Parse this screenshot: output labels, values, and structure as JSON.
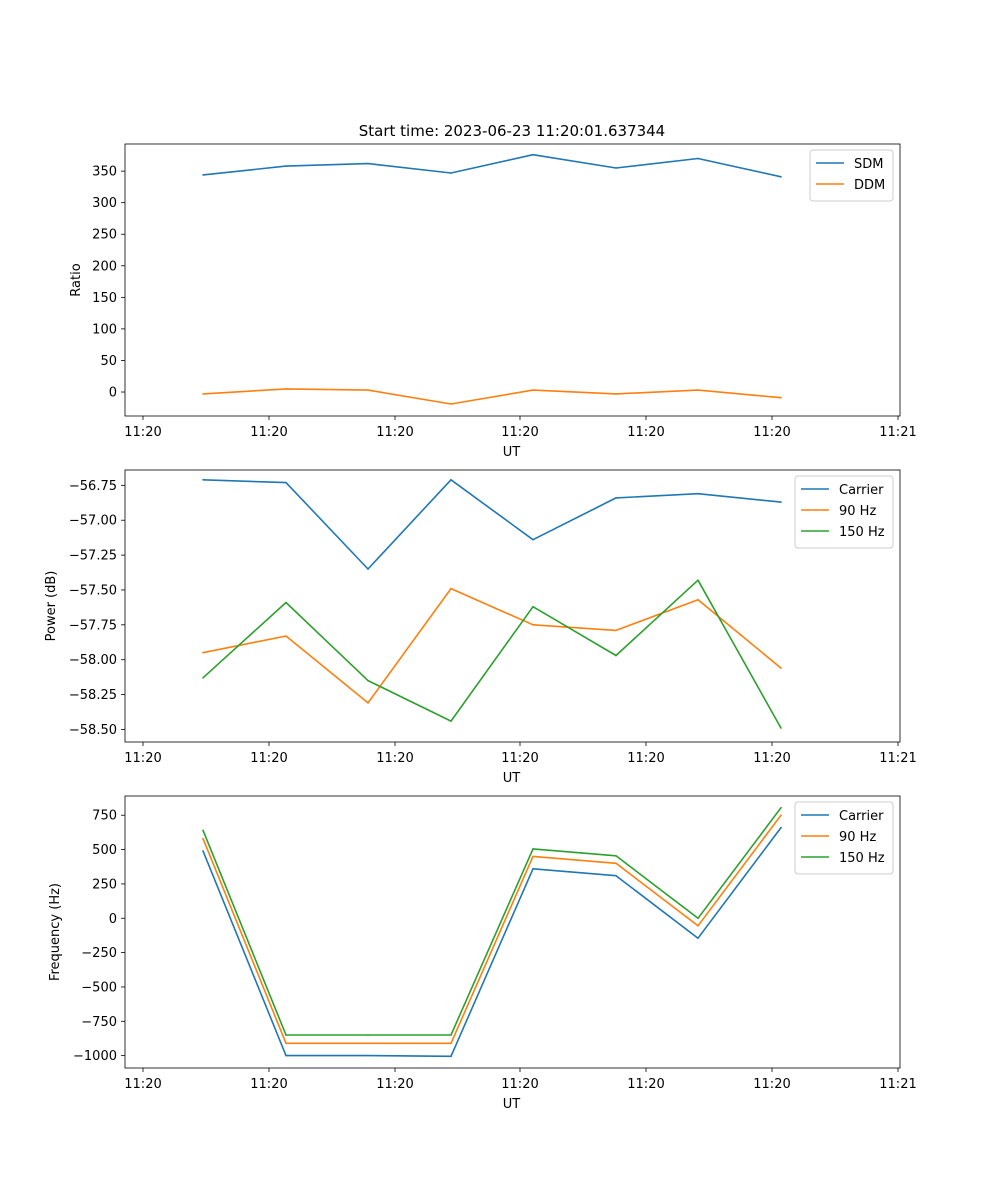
{
  "figure_title": "Start time: 2023-06-23 11:20:01.637344",
  "colors": {
    "blue": "#1f77b4",
    "orange": "#ff7f0e",
    "green": "#2ca02c"
  },
  "chart_data": [
    {
      "type": "line",
      "xlabel": "UT",
      "ylabel": "Ratio",
      "xtick_labels": [
        "11:20",
        "11:20",
        "11:20",
        "11:20",
        "11:20",
        "11:20",
        "11:21"
      ],
      "ylim": [
        -38,
        393
      ],
      "yticks": [
        0,
        50,
        100,
        150,
        200,
        250,
        300,
        350
      ],
      "ytick_labels": [
        "0",
        "50",
        "100",
        "150",
        "200",
        "250",
        "300",
        "350"
      ],
      "legend_position": "top-right",
      "series": [
        {
          "name": "SDM",
          "color": "#1f77b4",
          "values": [
            344,
            358,
            362,
            347,
            376,
            355,
            370,
            341
          ]
        },
        {
          "name": "DDM",
          "color": "#ff7f0e",
          "values": [
            -3,
            5,
            3,
            -19,
            3,
            -3,
            3,
            -9
          ]
        }
      ]
    },
    {
      "type": "line",
      "xlabel": "UT",
      "ylabel": "Power (dB)",
      "xtick_labels": [
        "11:20",
        "11:20",
        "11:20",
        "11:20",
        "11:20",
        "11:20",
        "11:21"
      ],
      "ylim": [
        -58.59,
        -56.64
      ],
      "yticks": [
        -56.75,
        -57.0,
        -57.25,
        -57.5,
        -57.75,
        -58.0,
        -58.25,
        -58.5
      ],
      "ytick_labels": [
        "−56.75",
        "−57.00",
        "−57.25",
        "−57.50",
        "−57.75",
        "−58.00",
        "−58.25",
        "−58.50"
      ],
      "legend_position": "top-right",
      "series": [
        {
          "name": "Carrier",
          "color": "#1f77b4",
          "values": [
            -56.71,
            -56.73,
            -57.35,
            -56.71,
            -57.14,
            -56.84,
            -56.81,
            -56.87
          ]
        },
        {
          "name": "90 Hz",
          "color": "#ff7f0e",
          "values": [
            -57.95,
            -57.83,
            -58.31,
            -57.49,
            -57.75,
            -57.79,
            -57.57,
            -58.06
          ]
        },
        {
          "name": "150 Hz",
          "color": "#2ca02c",
          "values": [
            -58.13,
            -57.59,
            -58.15,
            -58.44,
            -57.62,
            -57.97,
            -57.43,
            -58.49
          ]
        }
      ]
    },
    {
      "type": "line",
      "xlabel": "UT",
      "ylabel": "Frequency (Hz)",
      "xtick_labels": [
        "11:20",
        "11:20",
        "11:20",
        "11:20",
        "11:20",
        "11:20",
        "11:21"
      ],
      "ylim": [
        -1090,
        890
      ],
      "yticks": [
        750,
        500,
        250,
        0,
        -250,
        -500,
        -750,
        -1000
      ],
      "ytick_labels": [
        "750",
        "500",
        "250",
        "0",
        "−250",
        "−500",
        "−750",
        "−1000"
      ],
      "legend_position": "top-right",
      "series": [
        {
          "name": "Carrier",
          "color": "#1f77b4",
          "values": [
            490,
            -1000,
            -1000,
            -1005,
            360,
            310,
            -145,
            660
          ]
        },
        {
          "name": "90 Hz",
          "color": "#ff7f0e",
          "values": [
            580,
            -910,
            -910,
            -910,
            450,
            400,
            -55,
            750
          ]
        },
        {
          "name": "150 Hz",
          "color": "#2ca02c",
          "values": [
            640,
            -850,
            -850,
            -850,
            505,
            455,
            0,
            805
          ]
        }
      ]
    }
  ]
}
